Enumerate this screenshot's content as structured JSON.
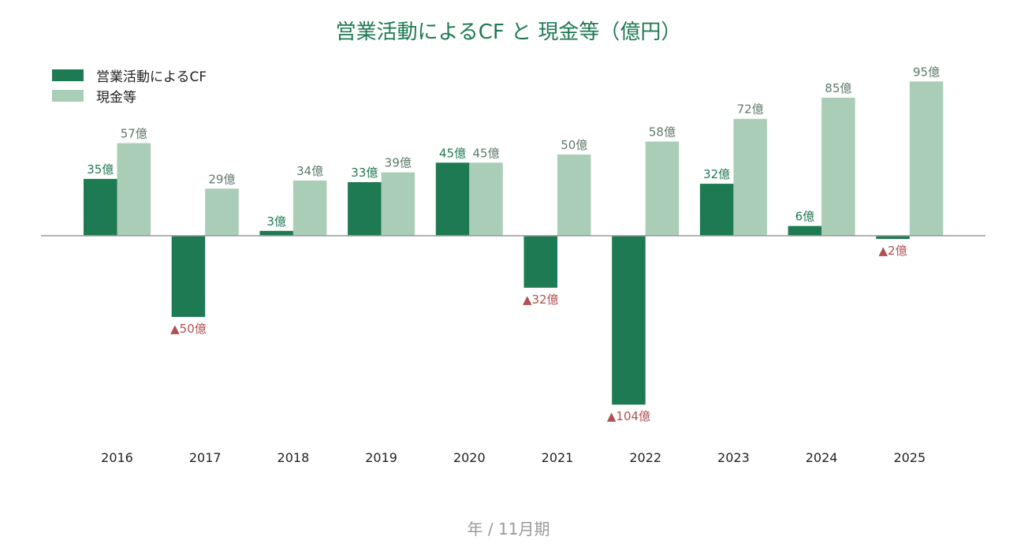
{
  "chart_data": {
    "type": "bar",
    "title": "営業活動によるCF と 現金等（億円）",
    "xlabel": "年 / 11月期",
    "categories": [
      "2016",
      "2017",
      "2018",
      "2019",
      "2020",
      "2021",
      "2022",
      "2023",
      "2024",
      "2025"
    ],
    "series": [
      {
        "name": "営業活動によるCF",
        "color": "#1e7a52",
        "values": [
          35,
          -50,
          3,
          33,
          45,
          -32,
          -104,
          32,
          6,
          -2
        ],
        "labels": [
          "35億",
          "▲50億",
          "3億",
          "33億",
          "45億",
          "▲32億",
          "▲104億",
          "32億",
          "6億",
          "▲2億"
        ]
      },
      {
        "name": "現金等",
        "color": "#a9cdb6",
        "values": [
          57,
          29,
          34,
          39,
          45,
          50,
          58,
          72,
          85,
          95
        ],
        "labels": [
          "57億",
          "29億",
          "34億",
          "39億",
          "45億",
          "50億",
          "58億",
          "72億",
          "85億",
          "95億"
        ]
      }
    ],
    "ylim": [
      -120,
      100
    ],
    "grid": false,
    "legend_position": "top-left",
    "label_colors": {
      "positive_cf": "#1e7a52",
      "negative": "#b05050",
      "cash": "#5e7a6a"
    }
  }
}
